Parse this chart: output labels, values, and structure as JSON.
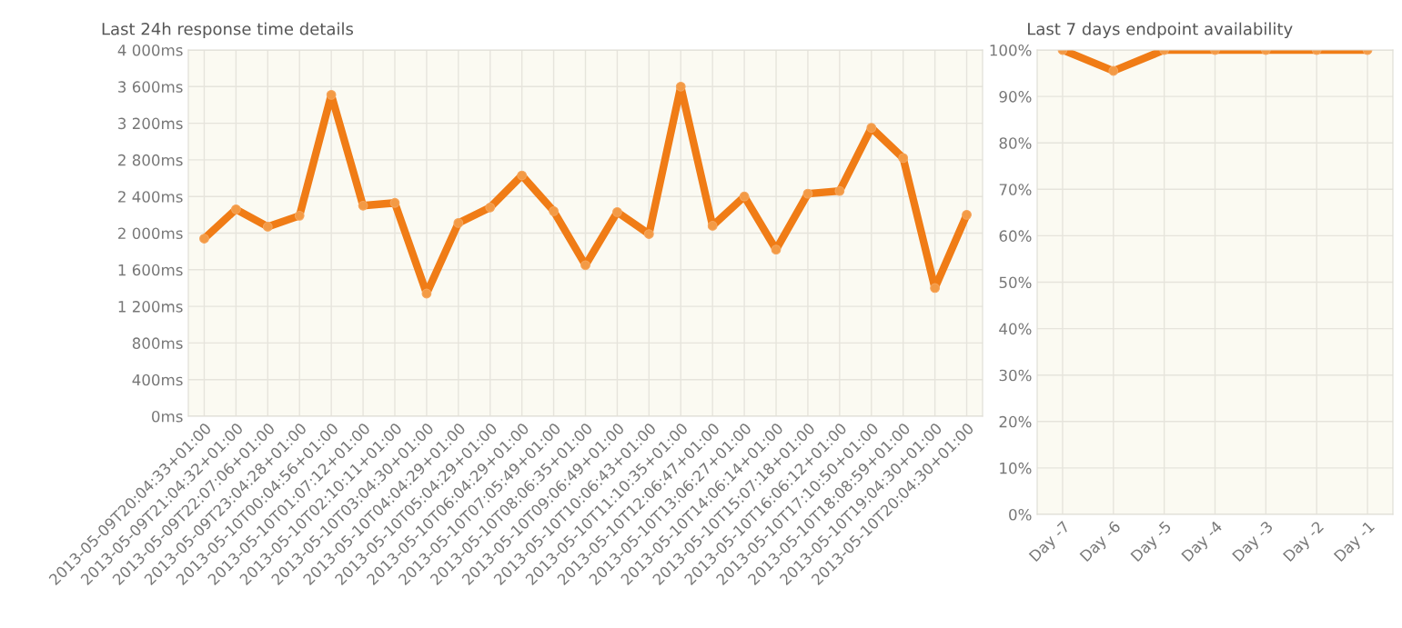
{
  "chart_data": [
    {
      "type": "line",
      "title": "Last 24h response time details",
      "categories": [
        "2013-05-09T20:04:33+01:00",
        "2013-05-09T21:04:32+01:00",
        "2013-05-09T22:07:06+01:00",
        "2013-05-09T23:04:28+01:00",
        "2013-05-10T00:04:56+01:00",
        "2013-05-10T01:07:12+01:00",
        "2013-05-10T02:10:11+01:00",
        "2013-05-10T03:04:30+01:00",
        "2013-05-10T04:04:29+01:00",
        "2013-05-10T05:04:29+01:00",
        "2013-05-10T06:04:29+01:00",
        "2013-05-10T07:05:49+01:00",
        "2013-05-10T08:06:35+01:00",
        "2013-05-10T09:06:49+01:00",
        "2013-05-10T10:06:43+01:00",
        "2013-05-10T11:10:35+01:00",
        "2013-05-10T12:06:47+01:00",
        "2013-05-10T13:06:27+01:00",
        "2013-05-10T14:06:14+01:00",
        "2013-05-10T15:07:18+01:00",
        "2013-05-10T16:06:12+01:00",
        "2013-05-10T17:10:50+01:00",
        "2013-05-10T18:08:59+01:00",
        "2013-05-10T19:04:30+01:00",
        "2013-05-10T20:04:30+01:00"
      ],
      "series": [
        {
          "color": "#f07c16",
          "values": [
            1940,
            2260,
            2070,
            2190,
            3510,
            2300,
            2330,
            1340,
            2110,
            2280,
            2630,
            2240,
            1650,
            2230,
            1990,
            3600,
            2080,
            2400,
            1820,
            2430,
            2460,
            3150,
            2820,
            1400,
            2200
          ]
        }
      ],
      "ylim": [
        0,
        4000
      ],
      "yticks": [
        {
          "value": 0,
          "label": "0ms"
        },
        {
          "value": 400,
          "label": "400ms"
        },
        {
          "value": 800,
          "label": "800ms"
        },
        {
          "value": 1200,
          "label": "1 200ms"
        },
        {
          "value": 1600,
          "label": "1 600ms"
        },
        {
          "value": 2000,
          "label": "2 000ms"
        },
        {
          "value": 2400,
          "label": "2 400ms"
        },
        {
          "value": 2800,
          "label": "2 800ms"
        },
        {
          "value": 3200,
          "label": "3 200ms"
        },
        {
          "value": 3600,
          "label": "3 600ms"
        },
        {
          "value": 4000,
          "label": "4 000ms"
        }
      ],
      "grid": true,
      "marker": "circle",
      "line_style": "solid",
      "legend": false
    },
    {
      "type": "line",
      "title": "Last 7 days endpoint availability",
      "categories": [
        "Day -7",
        "Day -6",
        "Day -5",
        "Day -4",
        "Day -3",
        "Day -2",
        "Day -1"
      ],
      "series": [
        {
          "color": "#f07c16",
          "values": [
            100,
            95.5,
            100,
            100,
            100,
            100,
            100
          ]
        }
      ],
      "ylim": [
        0,
        100
      ],
      "yticks": [
        {
          "value": 0,
          "label": "0%"
        },
        {
          "value": 10,
          "label": "10%"
        },
        {
          "value": 20,
          "label": "20%"
        },
        {
          "value": 30,
          "label": "30%"
        },
        {
          "value": 40,
          "label": "40%"
        },
        {
          "value": 50,
          "label": "50%"
        },
        {
          "value": 60,
          "label": "60%"
        },
        {
          "value": 70,
          "label": "70%"
        },
        {
          "value": 80,
          "label": "80%"
        },
        {
          "value": 90,
          "label": "90%"
        },
        {
          "value": 100,
          "label": "100%"
        }
      ],
      "grid": true,
      "marker": "circle",
      "line_style": "solid",
      "legend": false
    }
  ]
}
